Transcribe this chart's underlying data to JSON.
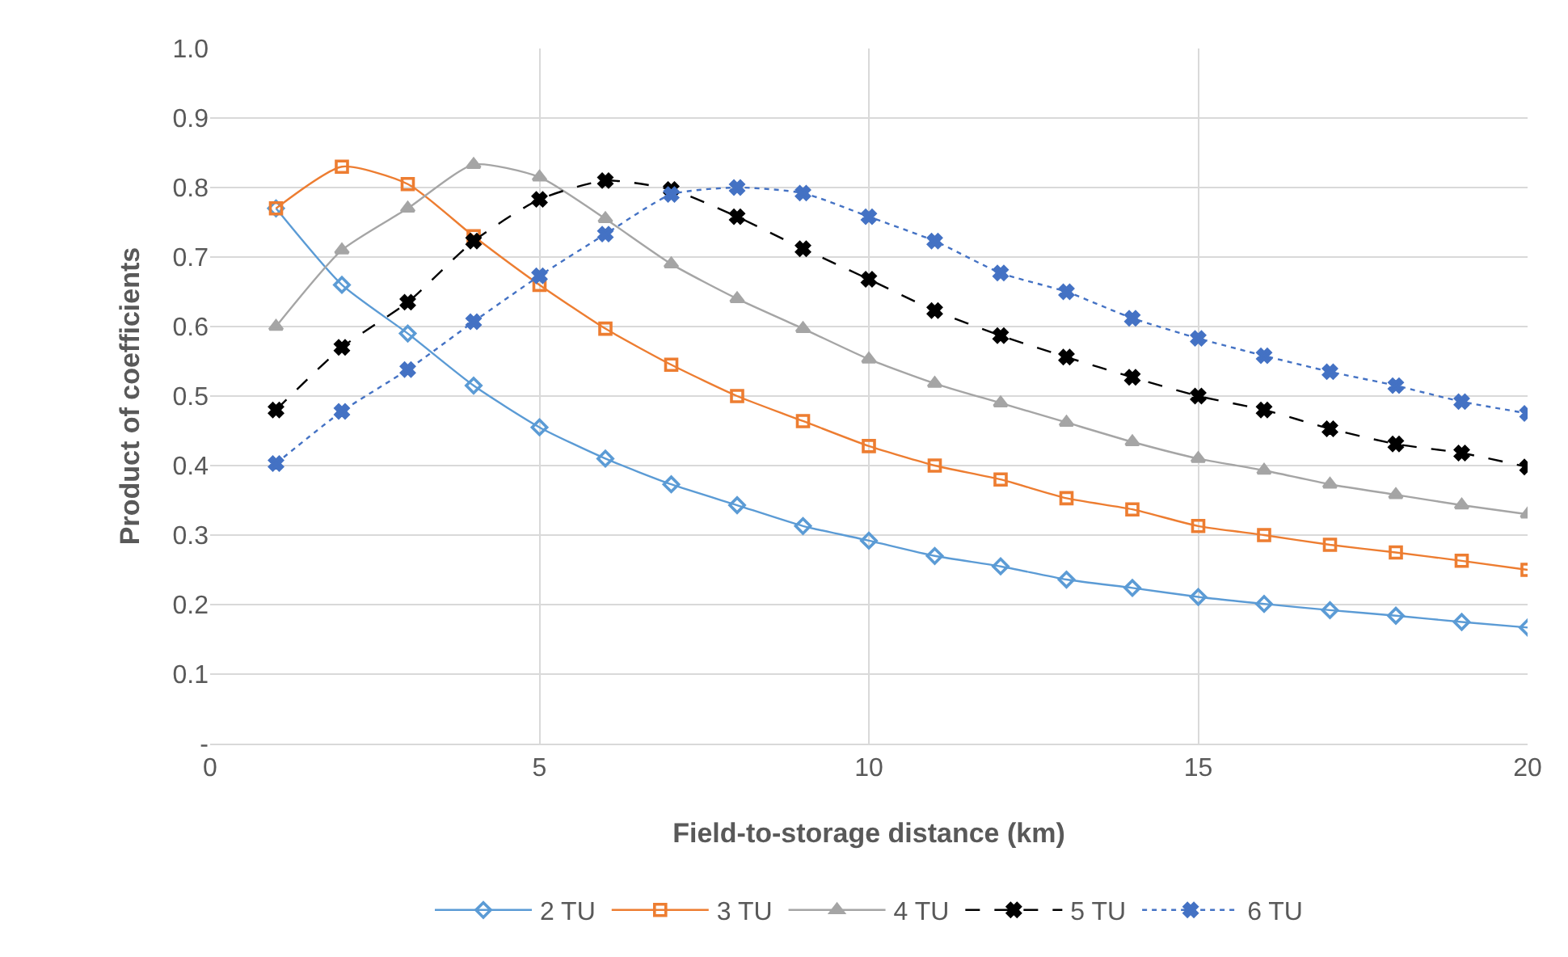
{
  "chart_data": {
    "type": "line",
    "xlabel": "Field-to-storage distance (km)",
    "ylabel": "Product of coefficients",
    "x": [
      1,
      2,
      3,
      4,
      5,
      6,
      7,
      8,
      9,
      10,
      11,
      12,
      13,
      14,
      15,
      16,
      17,
      18,
      19,
      20
    ],
    "series": [
      {
        "name": "2 TU",
        "color": "#5b9bd5",
        "marker": "diamond",
        "line_style": "solid",
        "values": [
          0.77,
          0.66,
          0.59,
          0.515,
          0.455,
          0.41,
          0.373,
          0.343,
          0.313,
          0.292,
          0.27,
          0.255,
          0.236,
          0.224,
          0.211,
          0.201,
          0.192,
          0.184,
          0.175,
          0.167
        ]
      },
      {
        "name": "3 TU",
        "color": "#ed7d31",
        "marker": "square",
        "line_style": "solid",
        "values": [
          0.77,
          0.83,
          0.805,
          0.73,
          0.66,
          0.597,
          0.545,
          0.5,
          0.464,
          0.428,
          0.4,
          0.38,
          0.353,
          0.337,
          0.313,
          0.3,
          0.286,
          0.275,
          0.263,
          0.25
        ]
      },
      {
        "name": "4 TU",
        "color": "#a5a5a5",
        "marker": "triangle",
        "line_style": "solid",
        "values": [
          0.6,
          0.71,
          0.77,
          0.833,
          0.815,
          0.755,
          0.69,
          0.64,
          0.597,
          0.553,
          0.518,
          0.49,
          0.462,
          0.434,
          0.41,
          0.393,
          0.373,
          0.358,
          0.343,
          0.33
        ]
      },
      {
        "name": "5 TU",
        "color": "#000000",
        "marker": "cross",
        "line_style": "dashed",
        "values": [
          0.48,
          0.57,
          0.635,
          0.723,
          0.783,
          0.81,
          0.797,
          0.758,
          0.712,
          0.668,
          0.623,
          0.587,
          0.556,
          0.527,
          0.5,
          0.48,
          0.453,
          0.431,
          0.418,
          0.398
        ]
      },
      {
        "name": "6 TU",
        "color": "#4472c4",
        "marker": "cross",
        "line_style": "dotted",
        "values": [
          0.403,
          0.478,
          0.538,
          0.607,
          0.673,
          0.733,
          0.79,
          0.8,
          0.792,
          0.758,
          0.723,
          0.677,
          0.65,
          0.612,
          0.583,
          0.558,
          0.535,
          0.515,
          0.492,
          0.475
        ]
      }
    ],
    "xlim": [
      0,
      20
    ],
    "xticks": [
      0,
      5,
      10,
      15,
      20
    ],
    "ylim": [
      0,
      1
    ],
    "yticks": [
      {
        "value": 0,
        "label": "-"
      },
      0.1,
      0.2,
      0.3,
      0.4,
      0.5,
      0.6,
      0.7,
      0.8,
      0.9,
      {
        "value": 1,
        "label": "1.0"
      }
    ],
    "grid": true,
    "legend": "bottom"
  }
}
